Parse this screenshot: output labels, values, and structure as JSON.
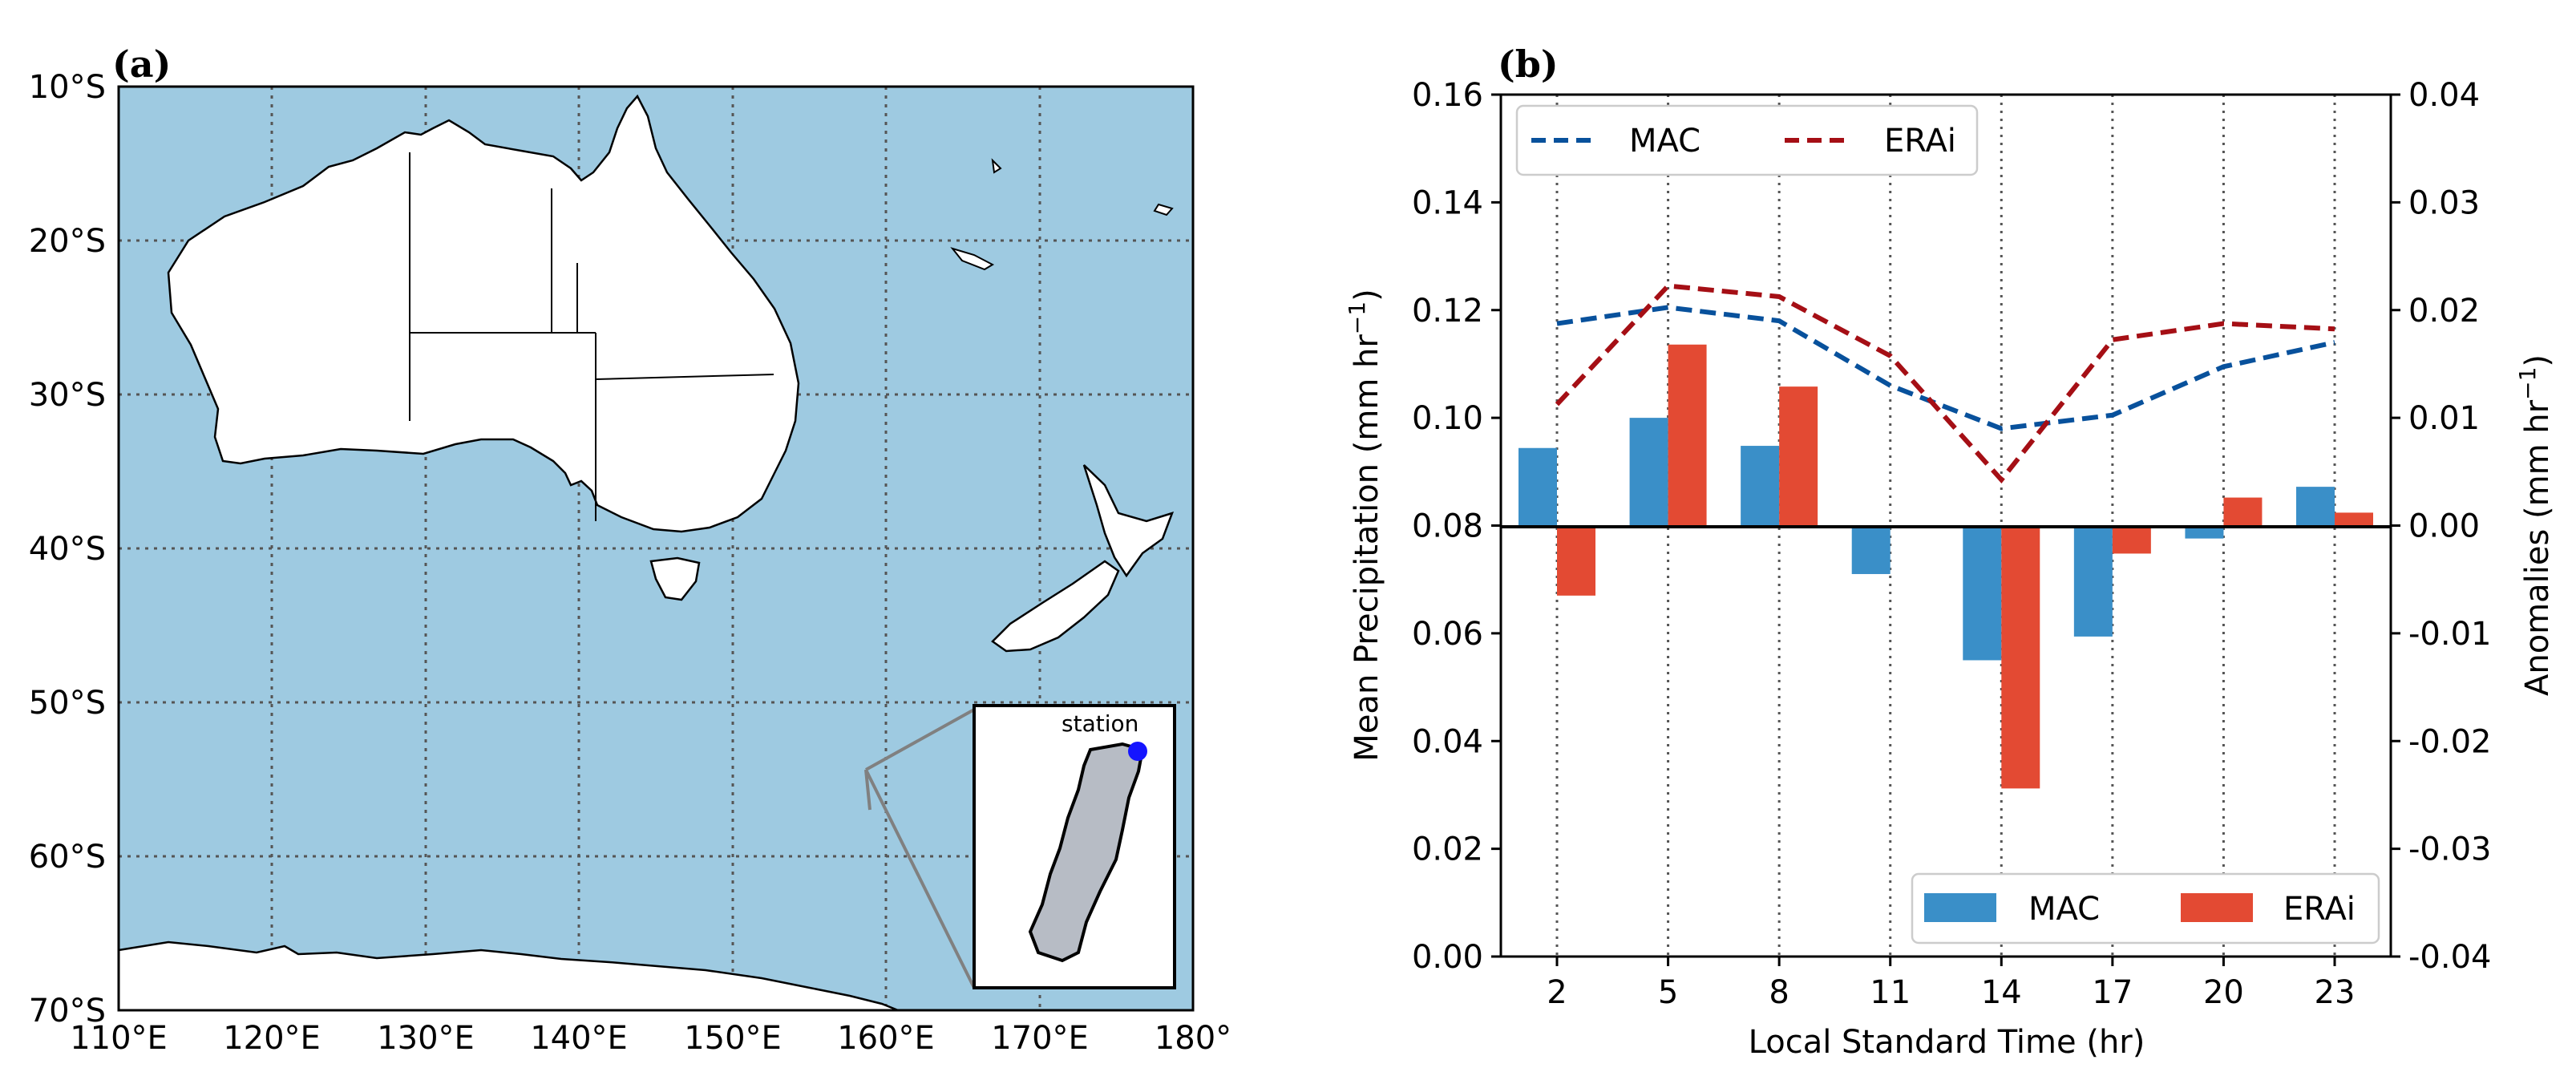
{
  "chart_data": [
    {
      "type": "map",
      "panel_label": "(a)",
      "xlim": [
        110,
        180
      ],
      "ylim": [
        -70,
        -10
      ],
      "x_ticks": [
        "110°E",
        "120°E",
        "130°E",
        "140°E",
        "150°E",
        "160°E",
        "170°E",
        "180°"
      ],
      "y_ticks": [
        "10°S",
        "20°S",
        "30°S",
        "40°S",
        "50°S",
        "60°S",
        "70°S"
      ],
      "inset_label": "station",
      "colors": {
        "ocean": "#9ecae1",
        "land": "#ffffff",
        "island": "#b7bcc5",
        "station": "#1515ff",
        "inset_pointer": "#808080"
      }
    },
    {
      "type": "bar",
      "panel_label": "(b)",
      "categories": [
        "2",
        "5",
        "8",
        "11",
        "14",
        "17",
        "20",
        "23"
      ],
      "xlabel": "Local Standard Time (hr)",
      "ylabel": "Mean Precipitation (mm hr$^{-1}$)",
      "ylabel_main": "Mean Precipitation (mm hr",
      "ylabel_exp": "−1",
      "ylabel_close": ")",
      "y2label_main": "Anomalies (mm hr",
      "y2label_exp": "−1",
      "y2label_close": ")",
      "ylim": [
        0.0,
        0.16
      ],
      "y2lim": [
        -0.04,
        0.04
      ],
      "y_ticks": [
        "0.00",
        "0.02",
        "0.04",
        "0.06",
        "0.08",
        "0.10",
        "0.12",
        "0.14",
        "0.16"
      ],
      "y2_ticks": [
        "-0.04",
        "-0.03",
        "-0.02",
        "-0.01",
        "0.00",
        "0.01",
        "0.02",
        "0.03",
        "0.04"
      ],
      "line_series": [
        {
          "name": "MAC",
          "values": [
            0.1175,
            0.1205,
            0.118,
            0.106,
            0.098,
            0.1005,
            0.1095,
            0.114
          ],
          "color": "#08519c"
        },
        {
          "name": "ERAi",
          "values": [
            0.1025,
            0.1245,
            0.1225,
            0.1115,
            0.0885,
            0.1145,
            0.1175,
            0.1165
          ],
          "color": "#a50f15"
        }
      ],
      "bar_series": [
        {
          "name": "MAC",
          "values": [
            0.0072,
            0.01,
            0.0074,
            -0.0045,
            -0.0125,
            -0.0103,
            -0.0012,
            0.0036
          ],
          "color": "#3a8fc8"
        },
        {
          "name": "ERAi",
          "values": [
            -0.0065,
            0.0168,
            0.0129,
            0.0,
            -0.0244,
            -0.0026,
            0.0026,
            0.0012
          ],
          "color": "#e34a33"
        }
      ],
      "legend_lines": {
        "position": "top-left",
        "labels": [
          "MAC",
          "ERAi"
        ]
      },
      "legend_bars": {
        "position": "bottom-right",
        "labels": [
          "MAC",
          "ERAi"
        ]
      }
    }
  ]
}
